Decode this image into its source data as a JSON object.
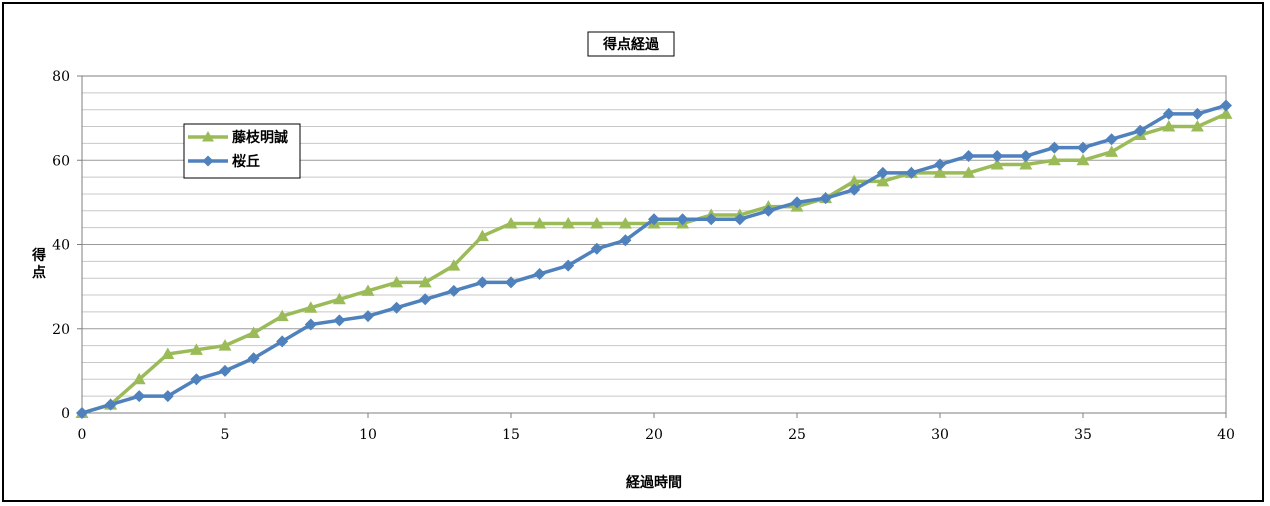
{
  "chart_data": {
    "type": "line",
    "title": "得点経過",
    "xlabel": "経過時間",
    "ylabel": "得点",
    "xlim": [
      0,
      40
    ],
    "ylim": [
      0,
      80
    ],
    "x_ticks": [
      0,
      5,
      10,
      15,
      20,
      25,
      30,
      35,
      40
    ],
    "y_ticks": [
      0,
      20,
      40,
      60,
      80
    ],
    "minor_gridline_step": 4,
    "grid": true,
    "legend_position": "upper-left",
    "x": [
      0,
      1,
      2,
      3,
      4,
      5,
      6,
      7,
      8,
      9,
      10,
      11,
      12,
      13,
      14,
      15,
      16,
      17,
      18,
      19,
      20,
      21,
      22,
      23,
      24,
      25,
      26,
      27,
      28,
      29,
      30,
      31,
      32,
      33,
      34,
      35,
      36,
      37,
      38,
      39,
      40
    ],
    "series": [
      {
        "name": "藤枝明誠",
        "color": "#9BBB59",
        "marker": "triangle",
        "values": [
          0,
          2,
          8,
          14,
          15,
          16,
          19,
          23,
          25,
          27,
          29,
          31,
          31,
          35,
          42,
          45,
          45,
          45,
          45,
          45,
          45,
          45,
          47,
          47,
          49,
          49,
          51,
          55,
          55,
          57,
          57,
          57,
          59,
          59,
          60,
          60,
          62,
          66,
          68,
          68,
          71
        ]
      },
      {
        "name": "桜丘",
        "color": "#4F81BD",
        "marker": "diamond",
        "values": [
          0,
          2,
          4,
          4,
          8,
          10,
          13,
          17,
          21,
          22,
          23,
          25,
          27,
          29,
          31,
          31,
          33,
          35,
          39,
          41,
          46,
          46,
          46,
          46,
          48,
          50,
          51,
          53,
          57,
          57,
          59,
          61,
          61,
          61,
          63,
          63,
          65,
          67,
          71,
          71,
          73
        ]
      }
    ]
  }
}
